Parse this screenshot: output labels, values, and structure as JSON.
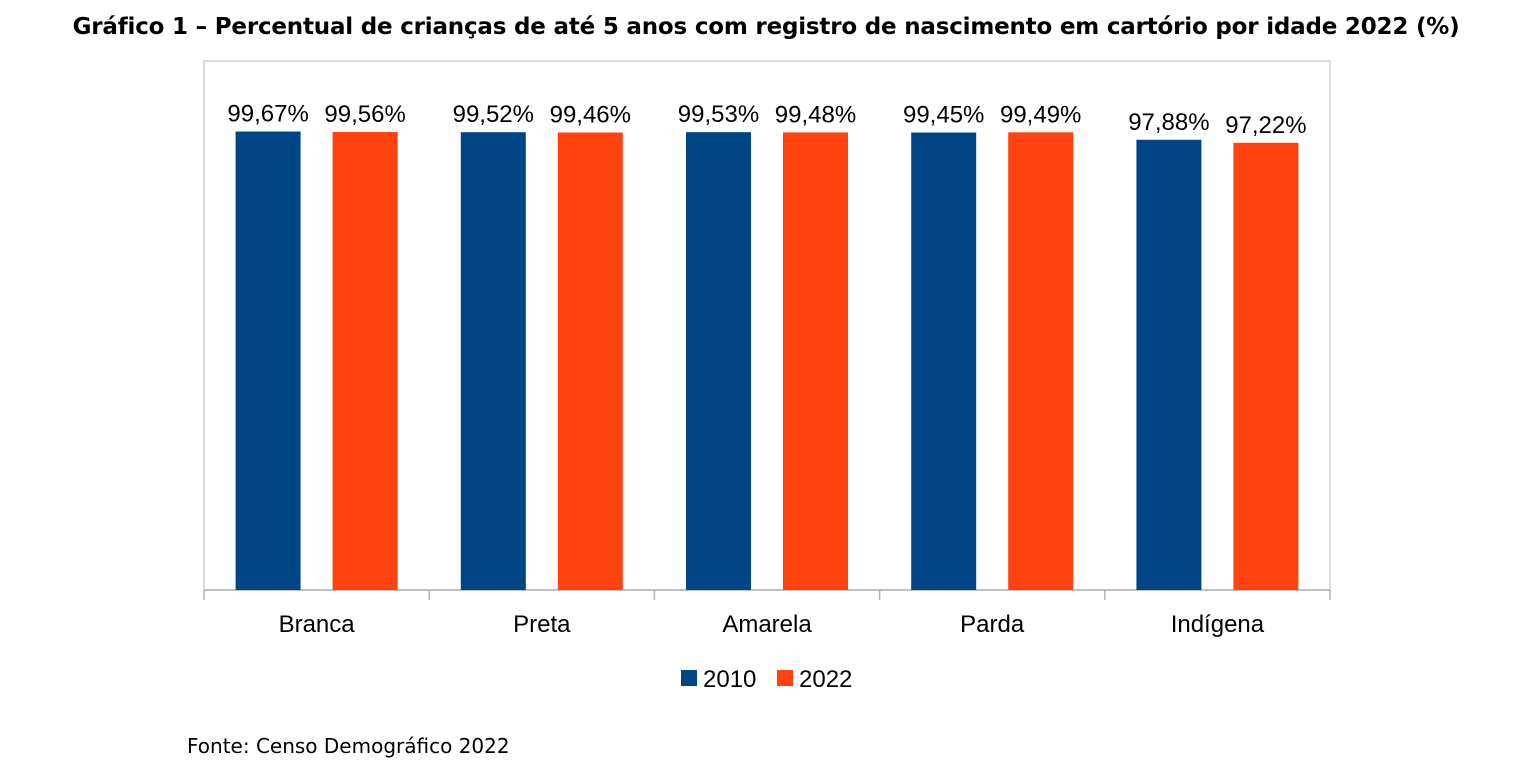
{
  "title": "Gráfico 1 – Percentual de crianças de até 5 anos com registro de nascimento em cartório por idade 2022 (%)",
  "source": "Fonte: Censo Demográfico 2022",
  "chart_data": {
    "type": "bar",
    "categories": [
      "Branca",
      "Preta",
      "Amarela",
      "Parda",
      "Indígena"
    ],
    "series": [
      {
        "name": "2010",
        "color": "#004586",
        "values": [
          99.67,
          99.52,
          99.53,
          99.45,
          97.88
        ],
        "labels": [
          "99,67%",
          "99,52%",
          "99,53%",
          "99,45%",
          "97,88%"
        ]
      },
      {
        "name": "2022",
        "color": "#ff420e",
        "values": [
          99.56,
          99.46,
          99.48,
          99.49,
          97.22
        ],
        "labels": [
          "99,56%",
          "99,46%",
          "99,48%",
          "99,49%",
          "97,22%"
        ]
      }
    ],
    "ylim": [
      0,
      100
    ],
    "grid": false,
    "legend_position": "bottom"
  }
}
